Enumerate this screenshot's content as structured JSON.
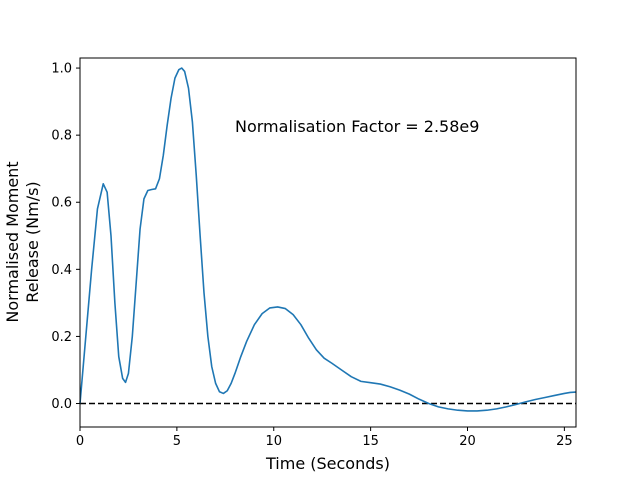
{
  "chart_data": {
    "type": "line",
    "title": "",
    "xlabel": "Time (Seconds)",
    "ylabel_lines": [
      "Normalised Moment",
      "Release (Nm/s)"
    ],
    "annotation": {
      "text": "Normalisation Factor = 2.58e9",
      "x": 8.0,
      "y": 0.81
    },
    "xlim": [
      0,
      25.6
    ],
    "ylim": [
      -0.07,
      1.03
    ],
    "xticks": [
      0,
      5,
      10,
      15,
      20,
      25
    ],
    "xtick_labels": [
      "0",
      "5",
      "10",
      "15",
      "20",
      "25"
    ],
    "yticks": [
      0.0,
      0.2,
      0.4,
      0.6,
      0.8,
      1.0
    ],
    "ytick_labels": [
      "0.0",
      "0.2",
      "0.4",
      "0.6",
      "0.8",
      "1.0"
    ],
    "grid": false,
    "reference_line": {
      "y": 0.0,
      "style": "dashed",
      "color": "#000000"
    },
    "series": [
      {
        "color": "#1f77b4",
        "x": [
          0.0,
          0.3,
          0.6,
          0.9,
          1.2,
          1.4,
          1.6,
          1.8,
          2.0,
          2.2,
          2.35,
          2.5,
          2.7,
          2.9,
          3.1,
          3.3,
          3.5,
          3.7,
          3.9,
          4.1,
          4.3,
          4.5,
          4.7,
          4.9,
          5.1,
          5.25,
          5.4,
          5.6,
          5.8,
          6.0,
          6.2,
          6.4,
          6.6,
          6.8,
          7.0,
          7.2,
          7.4,
          7.6,
          7.8,
          8.0,
          8.3,
          8.6,
          9.0,
          9.4,
          9.8,
          10.2,
          10.6,
          11.0,
          11.4,
          11.8,
          12.2,
          12.6,
          13.0,
          13.5,
          14.0,
          14.5,
          15.0,
          15.5,
          16.0,
          16.5,
          17.0,
          17.5,
          18.0,
          18.5,
          19.0,
          19.5,
          20.0,
          20.5,
          21.0,
          21.5,
          22.0,
          22.5,
          23.0,
          23.5,
          24.0,
          24.5,
          25.0,
          25.3,
          25.6
        ],
        "y": [
          0.0,
          0.2,
          0.4,
          0.58,
          0.655,
          0.63,
          0.5,
          0.3,
          0.14,
          0.075,
          0.063,
          0.09,
          0.2,
          0.36,
          0.52,
          0.61,
          0.635,
          0.638,
          0.64,
          0.67,
          0.74,
          0.83,
          0.91,
          0.97,
          0.995,
          1.0,
          0.99,
          0.94,
          0.84,
          0.68,
          0.5,
          0.33,
          0.2,
          0.11,
          0.06,
          0.035,
          0.03,
          0.038,
          0.06,
          0.09,
          0.14,
          0.185,
          0.235,
          0.268,
          0.285,
          0.288,
          0.283,
          0.265,
          0.235,
          0.195,
          0.16,
          0.135,
          0.12,
          0.1,
          0.08,
          0.066,
          0.062,
          0.058,
          0.05,
          0.04,
          0.028,
          0.013,
          0.0,
          -0.01,
          -0.016,
          -0.02,
          -0.022,
          -0.022,
          -0.02,
          -0.016,
          -0.01,
          -0.003,
          0.005,
          0.012,
          0.018,
          0.024,
          0.03,
          0.033,
          0.034
        ]
      }
    ]
  }
}
